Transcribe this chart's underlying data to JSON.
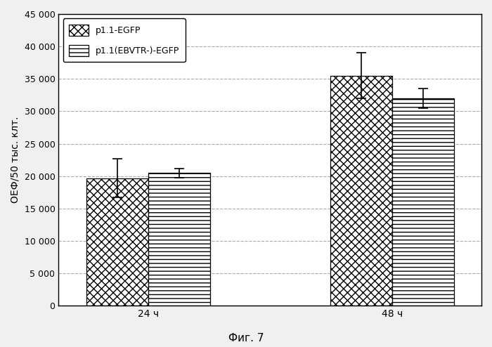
{
  "groups": [
    "24 ч",
    "48 ч"
  ],
  "series": [
    {
      "label": "p1.1-EGFP",
      "values": [
        19700,
        35500
      ],
      "errors": [
        3000,
        3500
      ],
      "hatch": "xxx",
      "facecolor": "#ffffff",
      "edgecolor": "#000000"
    },
    {
      "label": "p1.1(EBVTR-)-EGFP",
      "values": [
        20500,
        32000
      ],
      "errors": [
        700,
        1500
      ],
      "hatch": "---",
      "facecolor": "#ffffff",
      "edgecolor": "#000000"
    }
  ],
  "ylabel": "ОЕФ/50 тыс. клт.",
  "ylim": [
    0,
    45000
  ],
  "yticks": [
    0,
    5000,
    10000,
    15000,
    20000,
    25000,
    30000,
    35000,
    40000,
    45000
  ],
  "ytick_labels": [
    "0",
    "5 000",
    "10 000",
    "15 000",
    "20 000",
    "25 000",
    "30 000",
    "35 000",
    "40 000",
    "45 000"
  ],
  "caption": "Фиг. 7",
  "bar_width": 0.38,
  "background_color": "#f0f0f0",
  "plot_bg_color": "#ffffff",
  "grid_color": "#aaaaaa",
  "legend_fontsize": 9,
  "axis_fontsize": 10,
  "caption_fontsize": 11
}
